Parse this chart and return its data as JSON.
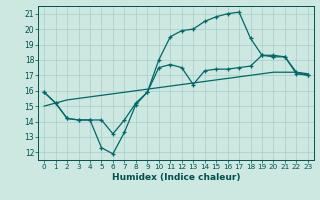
{
  "xlabel": "Humidex (Indice chaleur)",
  "ylabel": "",
  "bg_color": "#cce8e0",
  "grid_color": "#aacccc",
  "line_color": "#006868",
  "xlim": [
    -0.5,
    23.5
  ],
  "ylim": [
    11.5,
    21.5
  ],
  "xticks": [
    0,
    1,
    2,
    3,
    4,
    5,
    6,
    7,
    8,
    9,
    10,
    11,
    12,
    13,
    14,
    15,
    16,
    17,
    18,
    19,
    20,
    21,
    22,
    23
  ],
  "yticks": [
    12,
    13,
    14,
    15,
    16,
    17,
    18,
    19,
    20,
    21
  ],
  "line_bottom_x": [
    0,
    1,
    2,
    3,
    4,
    5,
    6,
    7,
    8,
    9,
    10,
    11,
    12,
    13,
    14,
    15,
    16,
    17,
    18,
    19,
    20,
    21,
    22,
    23
  ],
  "line_bottom_y": [
    15.0,
    15.2,
    15.4,
    15.5,
    15.6,
    15.7,
    15.8,
    15.9,
    16.0,
    16.1,
    16.2,
    16.3,
    16.4,
    16.5,
    16.6,
    16.7,
    16.8,
    16.9,
    17.0,
    17.1,
    17.2,
    17.2,
    17.2,
    17.1
  ],
  "line_zigzag_x": [
    0,
    1,
    2,
    3,
    4,
    5,
    6,
    7,
    8,
    9,
    10,
    11,
    12,
    13,
    14,
    15,
    16,
    17,
    18,
    19,
    20,
    21,
    22,
    23
  ],
  "line_zigzag_y": [
    15.9,
    15.2,
    14.2,
    14.1,
    14.1,
    12.3,
    11.9,
    13.3,
    15.1,
    15.9,
    17.5,
    17.7,
    17.5,
    16.4,
    17.3,
    17.4,
    17.4,
    17.5,
    17.6,
    18.3,
    18.2,
    18.2,
    17.2,
    17.0
  ],
  "line_upper_x": [
    0,
    1,
    2,
    3,
    4,
    5,
    6,
    7,
    8,
    9,
    10,
    11,
    12,
    13,
    14,
    15,
    16,
    17,
    18,
    19,
    20,
    21,
    22,
    23
  ],
  "line_upper_y": [
    15.9,
    15.2,
    14.2,
    14.1,
    14.1,
    14.1,
    13.2,
    14.1,
    15.2,
    15.9,
    18.0,
    19.5,
    19.9,
    20.0,
    20.5,
    20.8,
    21.0,
    21.1,
    19.4,
    18.3,
    18.3,
    18.2,
    17.1,
    17.0
  ]
}
